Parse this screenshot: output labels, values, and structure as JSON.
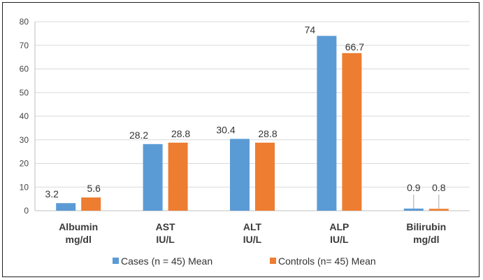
{
  "chart_data": {
    "type": "bar",
    "categories": [
      [
        "Albumin",
        "mg/dl"
      ],
      [
        "AST",
        "IU/L"
      ],
      [
        "ALT",
        "IU/L"
      ],
      [
        "ALP",
        "IU/L"
      ],
      [
        "Bilirubin",
        "mg/dl"
      ]
    ],
    "series": [
      {
        "name": "Cases (n = 45) Mean",
        "color": "#5B9BD5",
        "values": [
          3.2,
          28.2,
          30.4,
          74,
          0.9
        ],
        "labels": [
          "3.2",
          "28.2",
          "30.4",
          "74",
          "0.9"
        ]
      },
      {
        "name": "Controls (n= 45) Mean",
        "color": "#ED7D31",
        "values": [
          5.6,
          28.8,
          28.8,
          66.7,
          0.8
        ],
        "labels": [
          "5.6",
          "28.8",
          "28.8",
          "66.7",
          "0.8"
        ]
      }
    ],
    "ylim": [
      0,
      80
    ],
    "yticks": [
      0,
      10,
      20,
      30,
      40,
      50,
      60,
      70,
      80
    ],
    "grid": true,
    "legend": "bottom"
  }
}
